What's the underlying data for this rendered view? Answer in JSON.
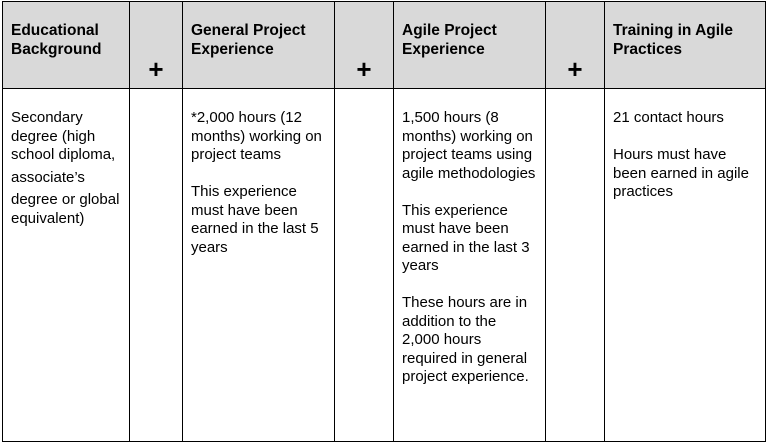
{
  "headers": [
    "Educational Background",
    "General Project Experience",
    "Agile Project Experience",
    "Training in Agile Practices"
  ],
  "plus": "+",
  "cells": {
    "education": [
      "Secondary degree (high school diploma,",
      "associate’s",
      "degree or global equivalent)"
    ],
    "general": [
      "*2,000 hours (12 months) working on project teams",
      "This experience must have been earned in the last 5 years"
    ],
    "agile": [
      "1,500 hours (8 months) working on project teams using agile methodologies",
      "This experience must have been earned in the last 3 years",
      "These hours are in addition to the 2,000 hours required in general project experience."
    ],
    "training": [
      "21 contact hours",
      "Hours must have been earned in agile practices"
    ]
  }
}
